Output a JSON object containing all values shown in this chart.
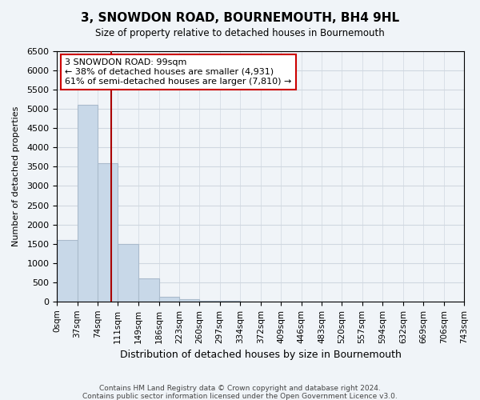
{
  "title": "3, SNOWDON ROAD, BOURNEMOUTH, BH4 9HL",
  "subtitle": "Size of property relative to detached houses in Bournemouth",
  "xlabel": "Distribution of detached houses by size in Bournemouth",
  "ylabel": "Number of detached properties",
  "bar_labels": [
    "0sqm",
    "37sqm",
    "74sqm",
    "111sqm",
    "149sqm",
    "186sqm",
    "223sqm",
    "260sqm",
    "297sqm",
    "334sqm",
    "372sqm",
    "409sqm",
    "446sqm",
    "483sqm",
    "520sqm",
    "557sqm",
    "594sqm",
    "632sqm",
    "669sqm",
    "706sqm",
    "743sqm"
  ],
  "bar_heights": [
    0,
    1600,
    5100,
    3600,
    1500,
    600,
    130,
    50,
    20,
    10,
    5,
    3,
    2,
    1,
    1,
    0,
    0,
    0,
    0,
    0,
    0
  ],
  "bar_color": "#c8d8e8",
  "bar_edge_color": "#aabbcc",
  "grid_color": "#d0d8e0",
  "background_color": "#f0f4f8",
  "annotation_text": "3 SNOWDON ROAD: 99sqm\n← 38% of detached houses are smaller (4,931)\n61% of semi-detached houses are larger (7,810) →",
  "annotation_box_color": "#ffffff",
  "annotation_box_edge_color": "#cc0000",
  "property_line_x": 99,
  "property_line_color": "#aa0000",
  "ylim": [
    0,
    6500
  ],
  "footnote1": "Contains HM Land Registry data © Crown copyright and database right 2024.",
  "footnote2": "Contains public sector information licensed under the Open Government Licence v3.0."
}
